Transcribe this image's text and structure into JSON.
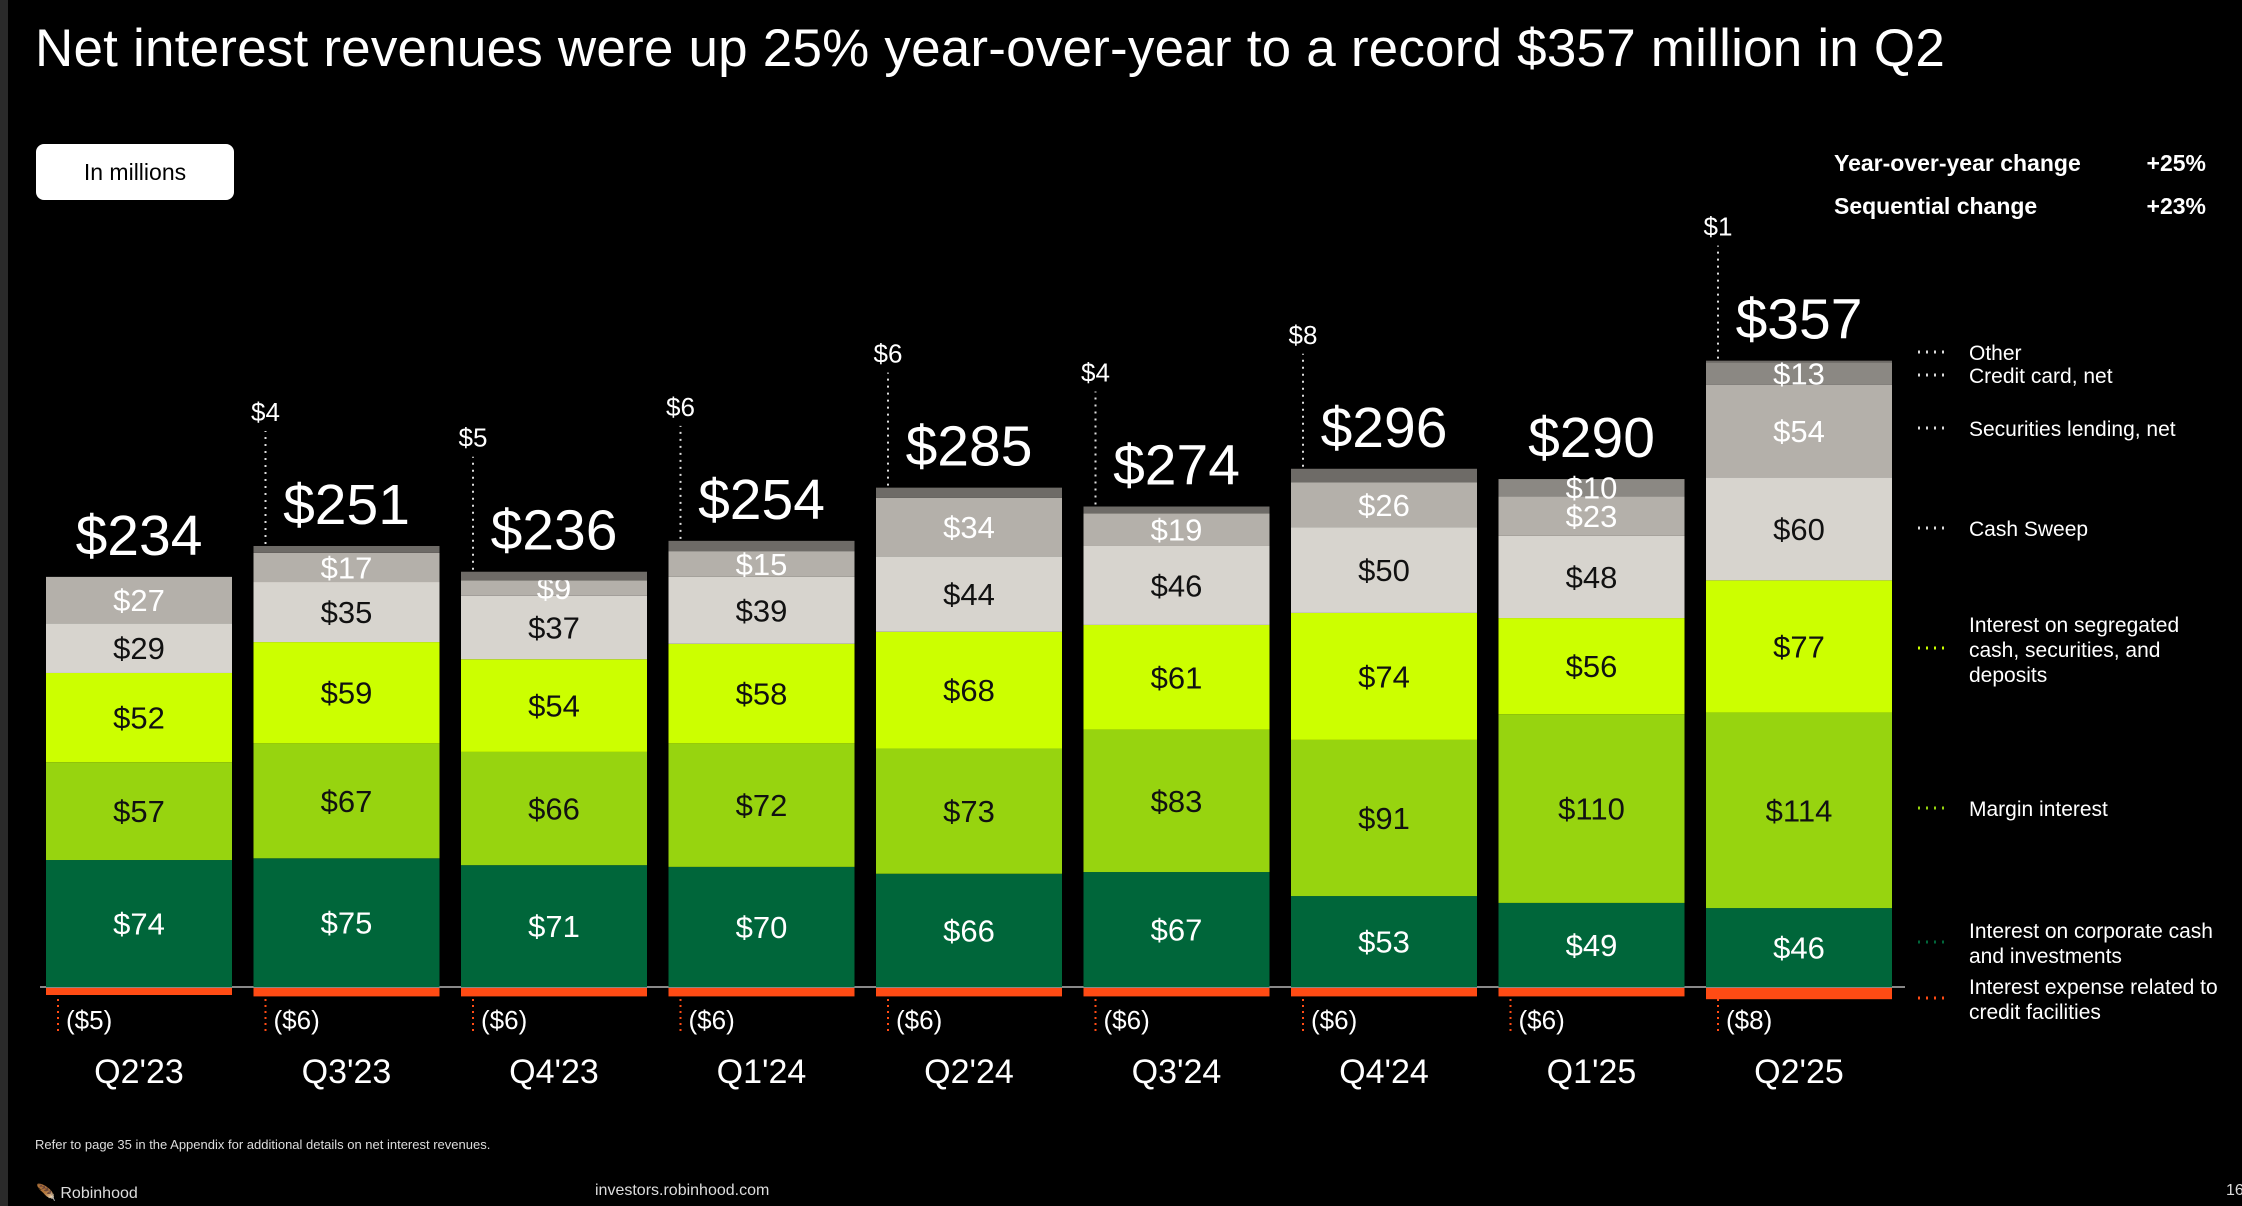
{
  "title": "Net interest revenues were up 25% year-over-year to a record $357 million in Q2",
  "units_label": "In millions",
  "changes": [
    {
      "label": "Year-over-year change",
      "value": "+25%"
    },
    {
      "label": "Sequential change",
      "value": "+23%"
    }
  ],
  "footnote": "Refer to page 35 in the Appendix for additional details on net interest revenues.",
  "footer": {
    "brand": "Robinhood",
    "url": "investors.robinhood.com",
    "page": "16"
  },
  "chart_data": {
    "type": "bar",
    "stacked": true,
    "categories": [
      "Q2'23",
      "Q3'23",
      "Q4'23",
      "Q1'24",
      "Q2'24",
      "Q3'24",
      "Q4'24",
      "Q1'25",
      "Q2'25"
    ],
    "totals": [
      234,
      251,
      236,
      254,
      285,
      274,
      296,
      290,
      357
    ],
    "series": [
      {
        "name": "Interest on corporate cash and investments",
        "color": "#00663a",
        "values": [
          74,
          75,
          71,
          70,
          66,
          67,
          53,
          49,
          46
        ]
      },
      {
        "name": "Margin interest",
        "color": "#97d40f",
        "values": [
          57,
          67,
          66,
          72,
          73,
          83,
          91,
          110,
          114
        ]
      },
      {
        "name": "Interest on segregated cash, securities, and deposits",
        "color": "#ccff00",
        "values": [
          52,
          59,
          54,
          58,
          68,
          61,
          74,
          56,
          77
        ]
      },
      {
        "name": "Cash Sweep",
        "color": "#d7d4ce",
        "values": [
          29,
          35,
          37,
          39,
          44,
          46,
          50,
          48,
          60
        ]
      },
      {
        "name": "Securities lending, net",
        "color": "#b4b0aa",
        "values": [
          27,
          17,
          9,
          15,
          34,
          19,
          26,
          23,
          54
        ]
      },
      {
        "name": "Credit card, net",
        "color": "#8b8883",
        "values": [
          null,
          null,
          null,
          null,
          null,
          null,
          null,
          10,
          13
        ]
      },
      {
        "name": "Other",
        "color": "#6e6b67",
        "values": [
          null,
          4,
          5,
          6,
          6,
          4,
          8,
          null,
          1
        ]
      },
      {
        "name": "Interest expense related to credit facilities",
        "color": "#ff4b14",
        "values": [
          -5,
          -6,
          -6,
          -6,
          -6,
          -6,
          -6,
          -6,
          -8
        ]
      }
    ],
    "ylabel": "In millions",
    "legend": "right"
  }
}
